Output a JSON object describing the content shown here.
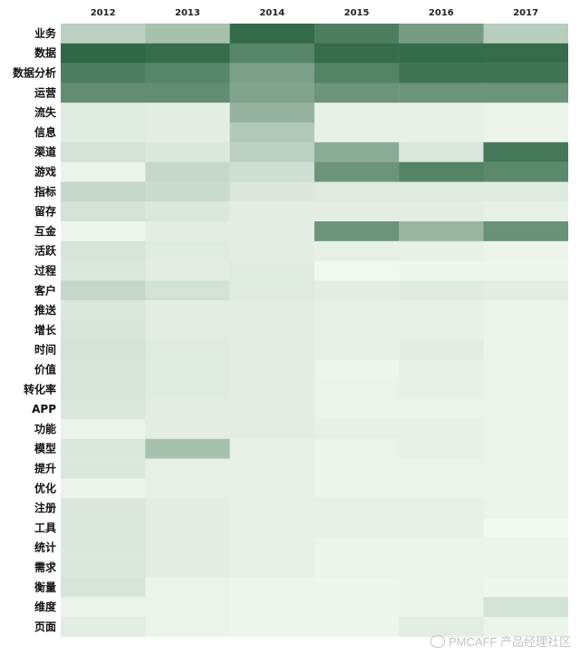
{
  "chart_data": {
    "type": "heatmap",
    "columns": [
      "2012",
      "2013",
      "2014",
      "2015",
      "2016",
      "2017"
    ],
    "rows": [
      "业务",
      "数据",
      "数据分析",
      "运营",
      "流失",
      "信息",
      "渠道",
      "游戏",
      "指标",
      "留存",
      "互金",
      "活跃",
      "过程",
      "客户",
      "推送",
      "增长",
      "时间",
      "价值",
      "转化率",
      "APP",
      "功能",
      "模型",
      "提升",
      "优化",
      "注册",
      "工具",
      "统计",
      "需求",
      "衡量",
      "维度",
      "页面"
    ],
    "values": [
      [
        0.3,
        0.4,
        0.98,
        0.85,
        0.65,
        0.32
      ],
      [
        1.0,
        0.97,
        0.8,
        0.97,
        0.98,
        0.97
      ],
      [
        0.85,
        0.8,
        0.62,
        0.82,
        0.92,
        0.92
      ],
      [
        0.75,
        0.75,
        0.6,
        0.7,
        0.7,
        0.7
      ],
      [
        0.12,
        0.1,
        0.5,
        0.08,
        0.08,
        0.06
      ],
      [
        0.12,
        0.1,
        0.35,
        0.08,
        0.08,
        0.06
      ],
      [
        0.18,
        0.14,
        0.3,
        0.55,
        0.15,
        0.9
      ],
      [
        0.06,
        0.24,
        0.2,
        0.7,
        0.82,
        0.78
      ],
      [
        0.25,
        0.22,
        0.14,
        0.12,
        0.12,
        0.12
      ],
      [
        0.18,
        0.14,
        0.1,
        0.1,
        0.1,
        0.08
      ],
      [
        0.05,
        0.1,
        0.1,
        0.7,
        0.48,
        0.72
      ],
      [
        0.16,
        0.12,
        0.1,
        0.08,
        0.08,
        0.06
      ],
      [
        0.14,
        0.1,
        0.12,
        0.03,
        0.04,
        0.04
      ],
      [
        0.25,
        0.18,
        0.12,
        0.1,
        0.12,
        0.1
      ],
      [
        0.14,
        0.1,
        0.1,
        0.08,
        0.08,
        0.06
      ],
      [
        0.16,
        0.1,
        0.1,
        0.08,
        0.08,
        0.06
      ],
      [
        0.18,
        0.12,
        0.1,
        0.08,
        0.1,
        0.06
      ],
      [
        0.16,
        0.12,
        0.1,
        0.05,
        0.08,
        0.06
      ],
      [
        0.16,
        0.12,
        0.1,
        0.06,
        0.08,
        0.06
      ],
      [
        0.14,
        0.1,
        0.1,
        0.06,
        0.06,
        0.06
      ],
      [
        0.06,
        0.1,
        0.1,
        0.08,
        0.08,
        0.06
      ],
      [
        0.14,
        0.4,
        0.08,
        0.06,
        0.08,
        0.06
      ],
      [
        0.14,
        0.08,
        0.08,
        0.06,
        0.06,
        0.06
      ],
      [
        0.06,
        0.08,
        0.08,
        0.06,
        0.06,
        0.06
      ],
      [
        0.14,
        0.1,
        0.08,
        0.08,
        0.08,
        0.06
      ],
      [
        0.14,
        0.1,
        0.08,
        0.08,
        0.08,
        0.03
      ],
      [
        0.14,
        0.1,
        0.08,
        0.06,
        0.06,
        0.06
      ],
      [
        0.14,
        0.1,
        0.08,
        0.06,
        0.06,
        0.06
      ],
      [
        0.16,
        0.06,
        0.05,
        0.04,
        0.06,
        0.04
      ],
      [
        0.06,
        0.06,
        0.05,
        0.04,
        0.06,
        0.18
      ],
      [
        0.1,
        0.06,
        0.05,
        0.05,
        0.1,
        0.06
      ]
    ],
    "color_scale": {
      "low": "#f7fcf5",
      "high": "#306847"
    },
    "grid": false,
    "legend": "none"
  },
  "watermark": {
    "text": "PMCAFF 产品经理社区"
  }
}
